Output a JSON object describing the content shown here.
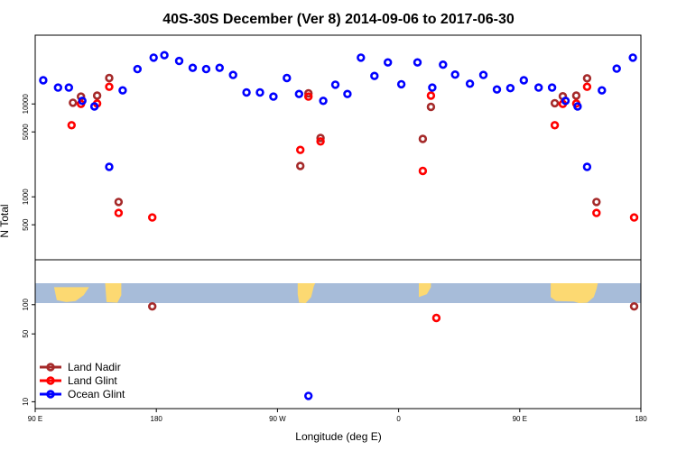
{
  "chart_data": {
    "type": "scatter",
    "title": "40S-30S December (Ver 8)   2014-09-06 to 2017-06-30",
    "xlabel": "Longitude (deg E)",
    "ylabel": "N Total",
    "x_ticks": [
      {
        "value": 90,
        "label": "90 E"
      },
      {
        "value": 180,
        "label": "180"
      },
      {
        "value": 270,
        "label": "90 W"
      },
      {
        "value": 360,
        "label": "0"
      },
      {
        "value": 450,
        "label": "90 E"
      },
      {
        "value": 540,
        "label": "180"
      }
    ],
    "xlim": [
      90,
      540
    ],
    "upper_panel": {
      "scale": "log",
      "ylim": [
        210,
        55000
      ],
      "y_ticks": [
        {
          "value": 500,
          "label": "500"
        },
        {
          "value": 1000,
          "label": "1000"
        },
        {
          "value": 5000,
          "label": "5000"
        },
        {
          "value": 10000,
          "label": "10000"
        }
      ]
    },
    "lower_panel": {
      "scale": "log",
      "ylim": [
        8.5,
        290
      ],
      "y_ticks": [
        {
          "value": 10,
          "label": "10"
        },
        {
          "value": 50,
          "label": "50"
        },
        {
          "value": 100,
          "label": "100"
        }
      ],
      "land_profile": [
        {
          "x": 117,
          "mask": [
            0.9,
            0.58
          ]
        },
        {
          "x": 147,
          "mask": [
            0.78,
            0.4
          ]
        },
        {
          "x": 286,
          "mask": [
            0.9,
            0.22
          ]
        },
        {
          "x": 377,
          "mask": [
            0.85,
            0.5
          ]
        },
        {
          "x": 475,
          "mask": [
            0.88,
            0.55
          ]
        }
      ]
    },
    "series": [
      {
        "name": "Land Nadir",
        "color": "#a52a2a",
        "points": [
          {
            "x": 118,
            "y": 10300
          },
          {
            "x": 124,
            "y": 12000
          },
          {
            "x": 136,
            "y": 12300
          },
          {
            "x": 145,
            "y": 19000
          },
          {
            "x": 152,
            "y": 880
          },
          {
            "x": 177,
            "y": 96
          },
          {
            "x": 287,
            "y": 2150
          },
          {
            "x": 293,
            "y": 13000
          },
          {
            "x": 302,
            "y": 4300
          },
          {
            "x": 378,
            "y": 4200
          },
          {
            "x": 384,
            "y": 9300
          },
          {
            "x": 476,
            "y": 10200
          },
          {
            "x": 482,
            "y": 12100
          },
          {
            "x": 492,
            "y": 12300
          },
          {
            "x": 500,
            "y": 18900
          },
          {
            "x": 507,
            "y": 880
          },
          {
            "x": 535,
            "y": 96
          }
        ]
      },
      {
        "name": "Land Glint",
        "color": "#ff0000",
        "points": [
          {
            "x": 117,
            "y": 5900
          },
          {
            "x": 124,
            "y": 10000
          },
          {
            "x": 136,
            "y": 10100
          },
          {
            "x": 145,
            "y": 15300
          },
          {
            "x": 152,
            "y": 670
          },
          {
            "x": 177,
            "y": 600
          },
          {
            "x": 287,
            "y": 3200
          },
          {
            "x": 293,
            "y": 12000
          },
          {
            "x": 302,
            "y": 3950
          },
          {
            "x": 378,
            "y": 1900
          },
          {
            "x": 384,
            "y": 12300
          },
          {
            "x": 388,
            "y": 73
          },
          {
            "x": 476,
            "y": 5900
          },
          {
            "x": 482,
            "y": 10000
          },
          {
            "x": 492,
            "y": 10100
          },
          {
            "x": 500,
            "y": 15300
          },
          {
            "x": 507,
            "y": 670
          },
          {
            "x": 535,
            "y": 600
          }
        ]
      },
      {
        "name": "Ocean Glint",
        "color": "#0000ff",
        "points": [
          {
            "x": 96,
            "y": 18000
          },
          {
            "x": 107,
            "y": 15000
          },
          {
            "x": 115,
            "y": 15000
          },
          {
            "x": 125,
            "y": 10800
          },
          {
            "x": 134,
            "y": 9400
          },
          {
            "x": 145,
            "y": 2100
          },
          {
            "x": 155,
            "y": 14000
          },
          {
            "x": 166,
            "y": 23700
          },
          {
            "x": 178,
            "y": 31500
          },
          {
            "x": 186,
            "y": 33500
          },
          {
            "x": 197,
            "y": 29000
          },
          {
            "x": 207,
            "y": 24500
          },
          {
            "x": 217,
            "y": 23700
          },
          {
            "x": 227,
            "y": 24500
          },
          {
            "x": 237,
            "y": 20500
          },
          {
            "x": 247,
            "y": 13300
          },
          {
            "x": 257,
            "y": 13300
          },
          {
            "x": 267,
            "y": 12000
          },
          {
            "x": 277,
            "y": 19000
          },
          {
            "x": 286,
            "y": 12800
          },
          {
            "x": 293,
            "y": 11.5
          },
          {
            "x": 304,
            "y": 10800
          },
          {
            "x": 313,
            "y": 16100
          },
          {
            "x": 322,
            "y": 12800
          },
          {
            "x": 332,
            "y": 31500
          },
          {
            "x": 342,
            "y": 20000
          },
          {
            "x": 352,
            "y": 28000
          },
          {
            "x": 362,
            "y": 16300
          },
          {
            "x": 374,
            "y": 28000
          },
          {
            "x": 385,
            "y": 15000
          },
          {
            "x": 393,
            "y": 26500
          },
          {
            "x": 402,
            "y": 20700
          },
          {
            "x": 413,
            "y": 16500
          },
          {
            "x": 423,
            "y": 20500
          },
          {
            "x": 433,
            "y": 14300
          },
          {
            "x": 443,
            "y": 14800
          },
          {
            "x": 453,
            "y": 18000
          },
          {
            "x": 464,
            "y": 15000
          },
          {
            "x": 474,
            "y": 15000
          },
          {
            "x": 484,
            "y": 10800
          },
          {
            "x": 493,
            "y": 9400
          },
          {
            "x": 500,
            "y": 2100
          },
          {
            "x": 511,
            "y": 14000
          },
          {
            "x": 522,
            "y": 24000
          },
          {
            "x": 534,
            "y": 31500
          }
        ]
      }
    ],
    "legend": {
      "position": "bottom-left"
    }
  }
}
